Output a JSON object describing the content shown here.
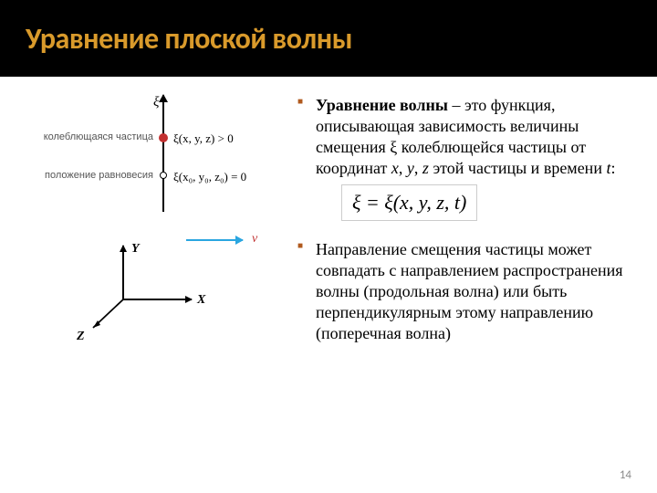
{
  "colors": {
    "title_text": "#d99a2b",
    "title_bg": "#000000",
    "bullet_marker": "#b05a1e",
    "arrow_blue": "#2aa6e0",
    "dot_red": "#c23030",
    "v_label": "#c03030",
    "slide_num": "#8a8a8a",
    "body_text": "#000000"
  },
  "typography": {
    "title_font": "Calibri",
    "title_size_pt": 32,
    "body_font": "Times New Roman",
    "body_size_pt": 18,
    "label_small_size_pt": 11
  },
  "slide": {
    "title": "Уравнение плоской волны",
    "number": "14"
  },
  "bullets": [
    {
      "text_html": "<b>Уравнение волны</b> – это функция, описывающая зависимость величины смещения ξ колеблющейся частицы от координат <i>x</i>, <i>y</i>, <i>z</i> этой частицы и времени <i>t</i>:",
      "equation": "ξ = ξ(x, y, z, t)"
    },
    {
      "text_html": "Направление смещения частицы может совпадать с направлением распространения волны (продольная волна) или быть перпендикулярным этому направлению (поперечная волна)"
    }
  ],
  "diagram": {
    "xi_axis_label": "ξ",
    "particle_label": "колеблющаяся частица",
    "particle_formula": "ξ(x, y, z) > 0",
    "equilibrium_label": "положение равновесия",
    "equilibrium_formula": "ξ(x₀, y₀, z₀) = 0",
    "velocity_label": "v",
    "axes": {
      "x": "X",
      "y": "Y",
      "z": "Z"
    }
  }
}
